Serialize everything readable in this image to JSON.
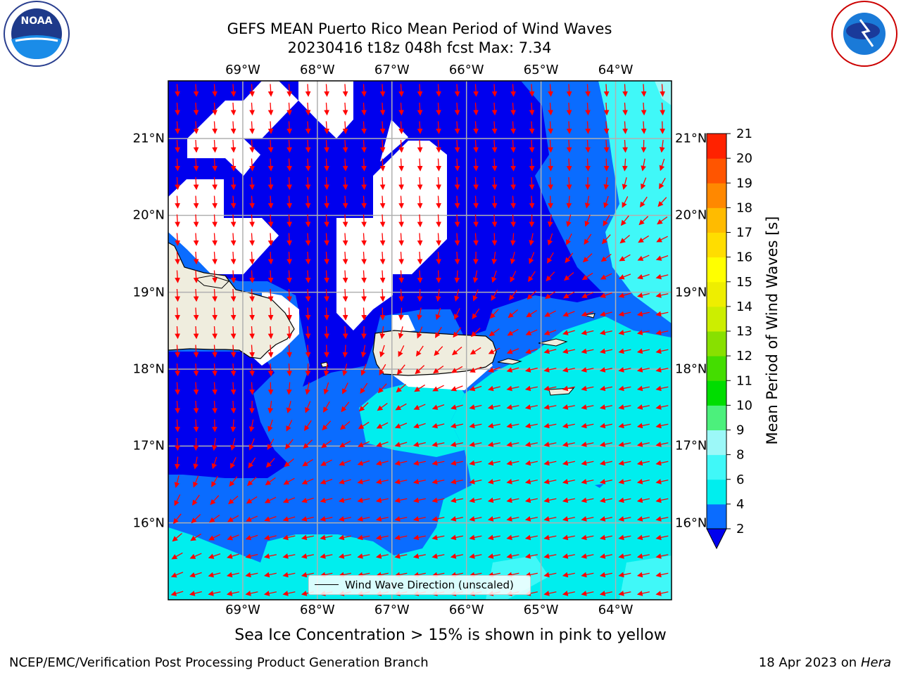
{
  "title": {
    "line1": "GEFS MEAN Puerto Rico Mean Period of Wind Waves",
    "line2": "20230416 t18z 048h fcst   Max: 7.34"
  },
  "map": {
    "lon_labels": [
      "69°W",
      "68°W",
      "67°W",
      "66°W",
      "65°W",
      "64°W"
    ],
    "lon_values": [
      -69,
      -68,
      -67,
      -66,
      -65,
      -64
    ],
    "lat_labels": [
      "21°N",
      "20°N",
      "19°N",
      "18°N",
      "17°N",
      "16°N"
    ],
    "lat_values": [
      21,
      20,
      19,
      18,
      17,
      16
    ],
    "lon_range": [
      -70.0,
      -63.25
    ],
    "lat_range": [
      15.0,
      21.75
    ],
    "legend_label": "Wind Wave Direction (unscaled)",
    "arrow_color": "#ff0000",
    "land_color": "#efedde"
  },
  "colorbar": {
    "title": "Mean Period of Wind Waves [s]",
    "tick_labels": [
      "2",
      "4",
      "6",
      "8",
      "9",
      "10",
      "11",
      "12",
      "13",
      "14",
      "15",
      "16",
      "17",
      "18",
      "19",
      "20",
      "21"
    ],
    "colors": [
      "#0a6cff",
      "#00eeee",
      "#40f8f8",
      "#9cf8f8",
      "#4cf07c",
      "#00dd00",
      "#44dd00",
      "#88e000",
      "#ccee00",
      "#eeee00",
      "#ffff00",
      "#ffdd00",
      "#ffbb00",
      "#ff8800",
      "#ff5500",
      "#ff2200"
    ],
    "under_color": "#0000ee"
  },
  "footer": {
    "note": "Sea Ice Concentration > 15% is shown in pink to yellow",
    "credit": "NCEP/EMC/Verification Post Processing Product Generation Branch",
    "date": "18 Apr 2023 on",
    "host": "Hera"
  },
  "logos": {
    "left": "NOAA",
    "right": "NATIONAL WEATHER SERVICE"
  }
}
